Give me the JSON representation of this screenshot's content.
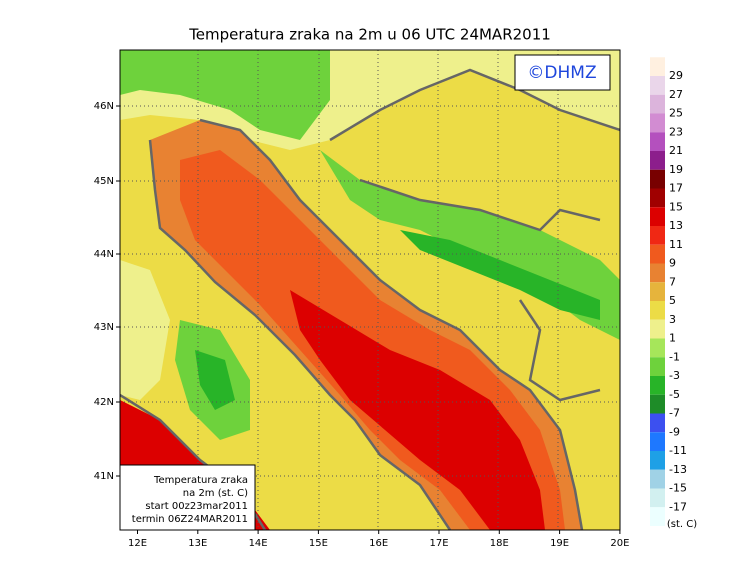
{
  "title": "Temperatura zraka na 2m u 06 UTC 24MAR2011",
  "copyright": "©DHMZ",
  "lat_labels": [
    "46N",
    "45N",
    "44N",
    "43N",
    "42N",
    "41N"
  ],
  "lon_labels": [
    "12E",
    "13E",
    "14E",
    "15E",
    "16E",
    "17E",
    "18E",
    "19E",
    "20E"
  ],
  "info_box": [
    "Temperatura zraka",
    "na 2m (st. C)",
    "start 00z23mar2011",
    "termin 06Z24MAR2011"
  ],
  "colorbar": {
    "labels": [
      "29",
      "27",
      "25",
      "23",
      "21",
      "19",
      "17",
      "15",
      "13",
      "11",
      "9",
      "7",
      "5",
      "3",
      "1",
      "-1",
      "-3",
      "-5",
      "-7",
      "-9",
      "-11",
      "-13",
      "-15",
      "-17"
    ],
    "colors": [
      "#fff0e0",
      "#ead6ea",
      "#dcb4dc",
      "#d28cd2",
      "#b450be",
      "#8c1e8c",
      "#780000",
      "#a00000",
      "#dc0000",
      "#f02814",
      "#f05a1e",
      "#e88232",
      "#e6b43c",
      "#ecdc46",
      "#eef08c",
      "#a6e65a",
      "#6ed23c",
      "#28b428",
      "#1e8c28",
      "#3c50f0",
      "#1e78ff",
      "#1ea0e6",
      "#a0d2e6",
      "#d2f0f0",
      "#ecffff"
    ],
    "unit": "(st. C)"
  }
}
